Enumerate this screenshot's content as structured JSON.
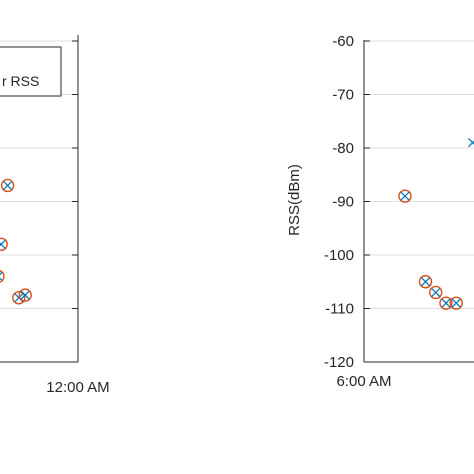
{
  "chart_data": [
    {
      "type": "scatter",
      "title": "",
      "xlabel": "",
      "ylabel": "",
      "x_ticks": [
        "12:00 AM"
      ],
      "ylim": [
        -120,
        -60
      ],
      "grid": true,
      "legend": {
        "placement": "top-left",
        "entries": [
          "r RSS"
        ]
      },
      "series": [
        {
          "marker": "circled-x",
          "points": [
            {
              "x": "11:35 PM",
              "y": -104
            },
            {
              "x": "11:41 PM",
              "y": -87
            },
            {
              "x": "11:37 PM",
              "y": -98
            },
            {
              "x": "11:48 PM",
              "y": -108
            },
            {
              "x": "11:52 PM",
              "y": -107.5
            }
          ]
        }
      ]
    },
    {
      "type": "scatter",
      "title": "",
      "xlabel": "",
      "ylabel": "RSS(dBm)",
      "y_ticks": [
        "-60",
        "-70",
        "-80",
        "-90",
        "-100",
        "-110",
        "-120"
      ],
      "x_ticks": [
        "6:00 AM"
      ],
      "ylim": [
        -120,
        -60
      ],
      "grid": true,
      "series": [
        {
          "marker": "circled-x",
          "points": [
            {
              "x": "6:20 AM",
              "y": -89
            },
            {
              "x": "6:30 AM",
              "y": -105
            },
            {
              "x": "6:35 AM",
              "y": -107
            },
            {
              "x": "6:40 AM",
              "y": -109
            },
            {
              "x": "6:45 AM",
              "y": -109
            }
          ]
        },
        {
          "marker": "x",
          "points": [
            {
              "x": "6:53 AM",
              "y": -79
            }
          ]
        }
      ]
    }
  ],
  "colors": {
    "circle": "#d95319",
    "cross": "#0072bd",
    "grid": "#dedede",
    "axis": "#262626"
  }
}
